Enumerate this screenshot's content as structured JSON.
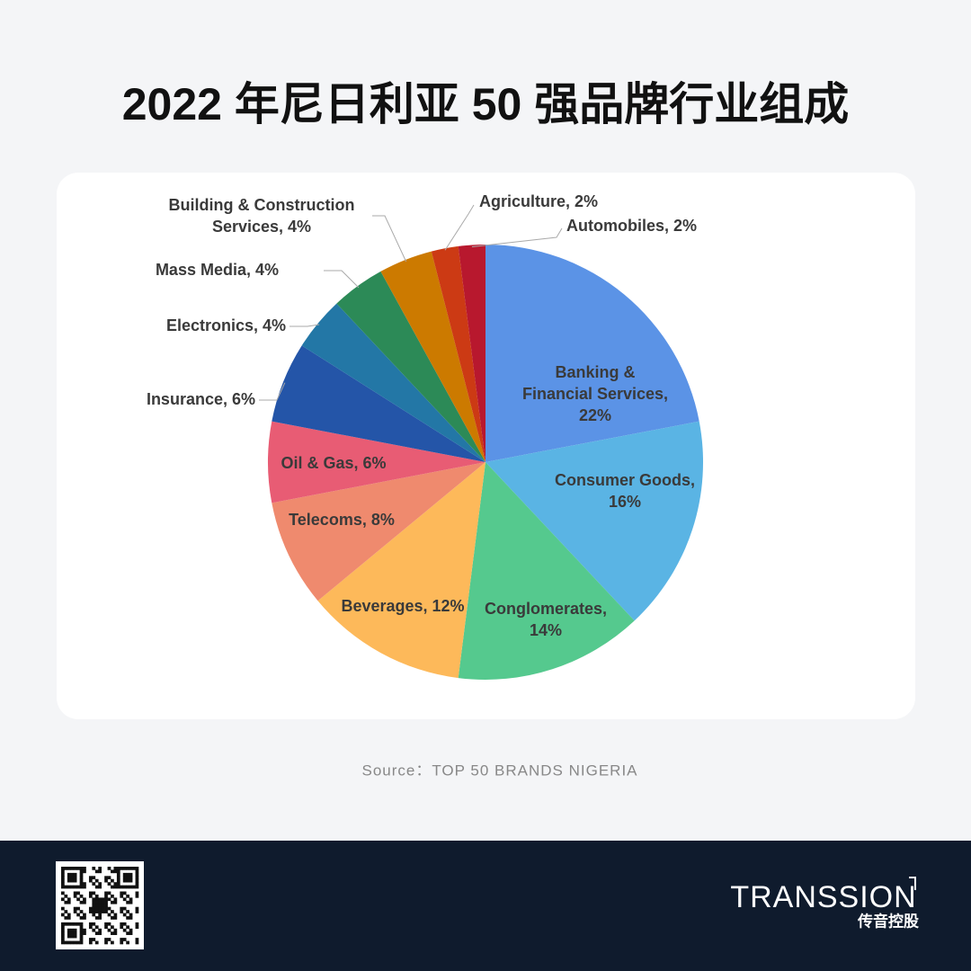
{
  "chart_data": {
    "type": "pie",
    "title": "2022 年尼日利亚 50 强品牌行业组成",
    "categories": [
      "Banking & Financial Services, 22%",
      "Consumer Goods, 16%",
      "Conglomerates, 14%",
      "Beverages, 12%",
      "Telecoms, 8%",
      "Oil & Gas, 6%",
      "Insurance, 6%",
      "Electronics, 4%",
      "Mass Media, 4%",
      "Building & Construction Services, 4%",
      "Agriculture, 2%",
      "Automobiles, 2%"
    ],
    "values": [
      22,
      16,
      14,
      12,
      8,
      6,
      6,
      4,
      4,
      4,
      2,
      2
    ],
    "colors": [
      "#5b93e6",
      "#5ab4e4",
      "#55c98e",
      "#fdb95a",
      "#ef8a6e",
      "#e85c74",
      "#2455a8",
      "#2377a6",
      "#2c8a57",
      "#cc7a00",
      "#cc3a14",
      "#b8182e"
    ],
    "source": "Source：TOP 50 BRANDS NIGERIA"
  },
  "footer": {
    "logo": "TRANSSION",
    "logo_cn": "传音控股"
  }
}
